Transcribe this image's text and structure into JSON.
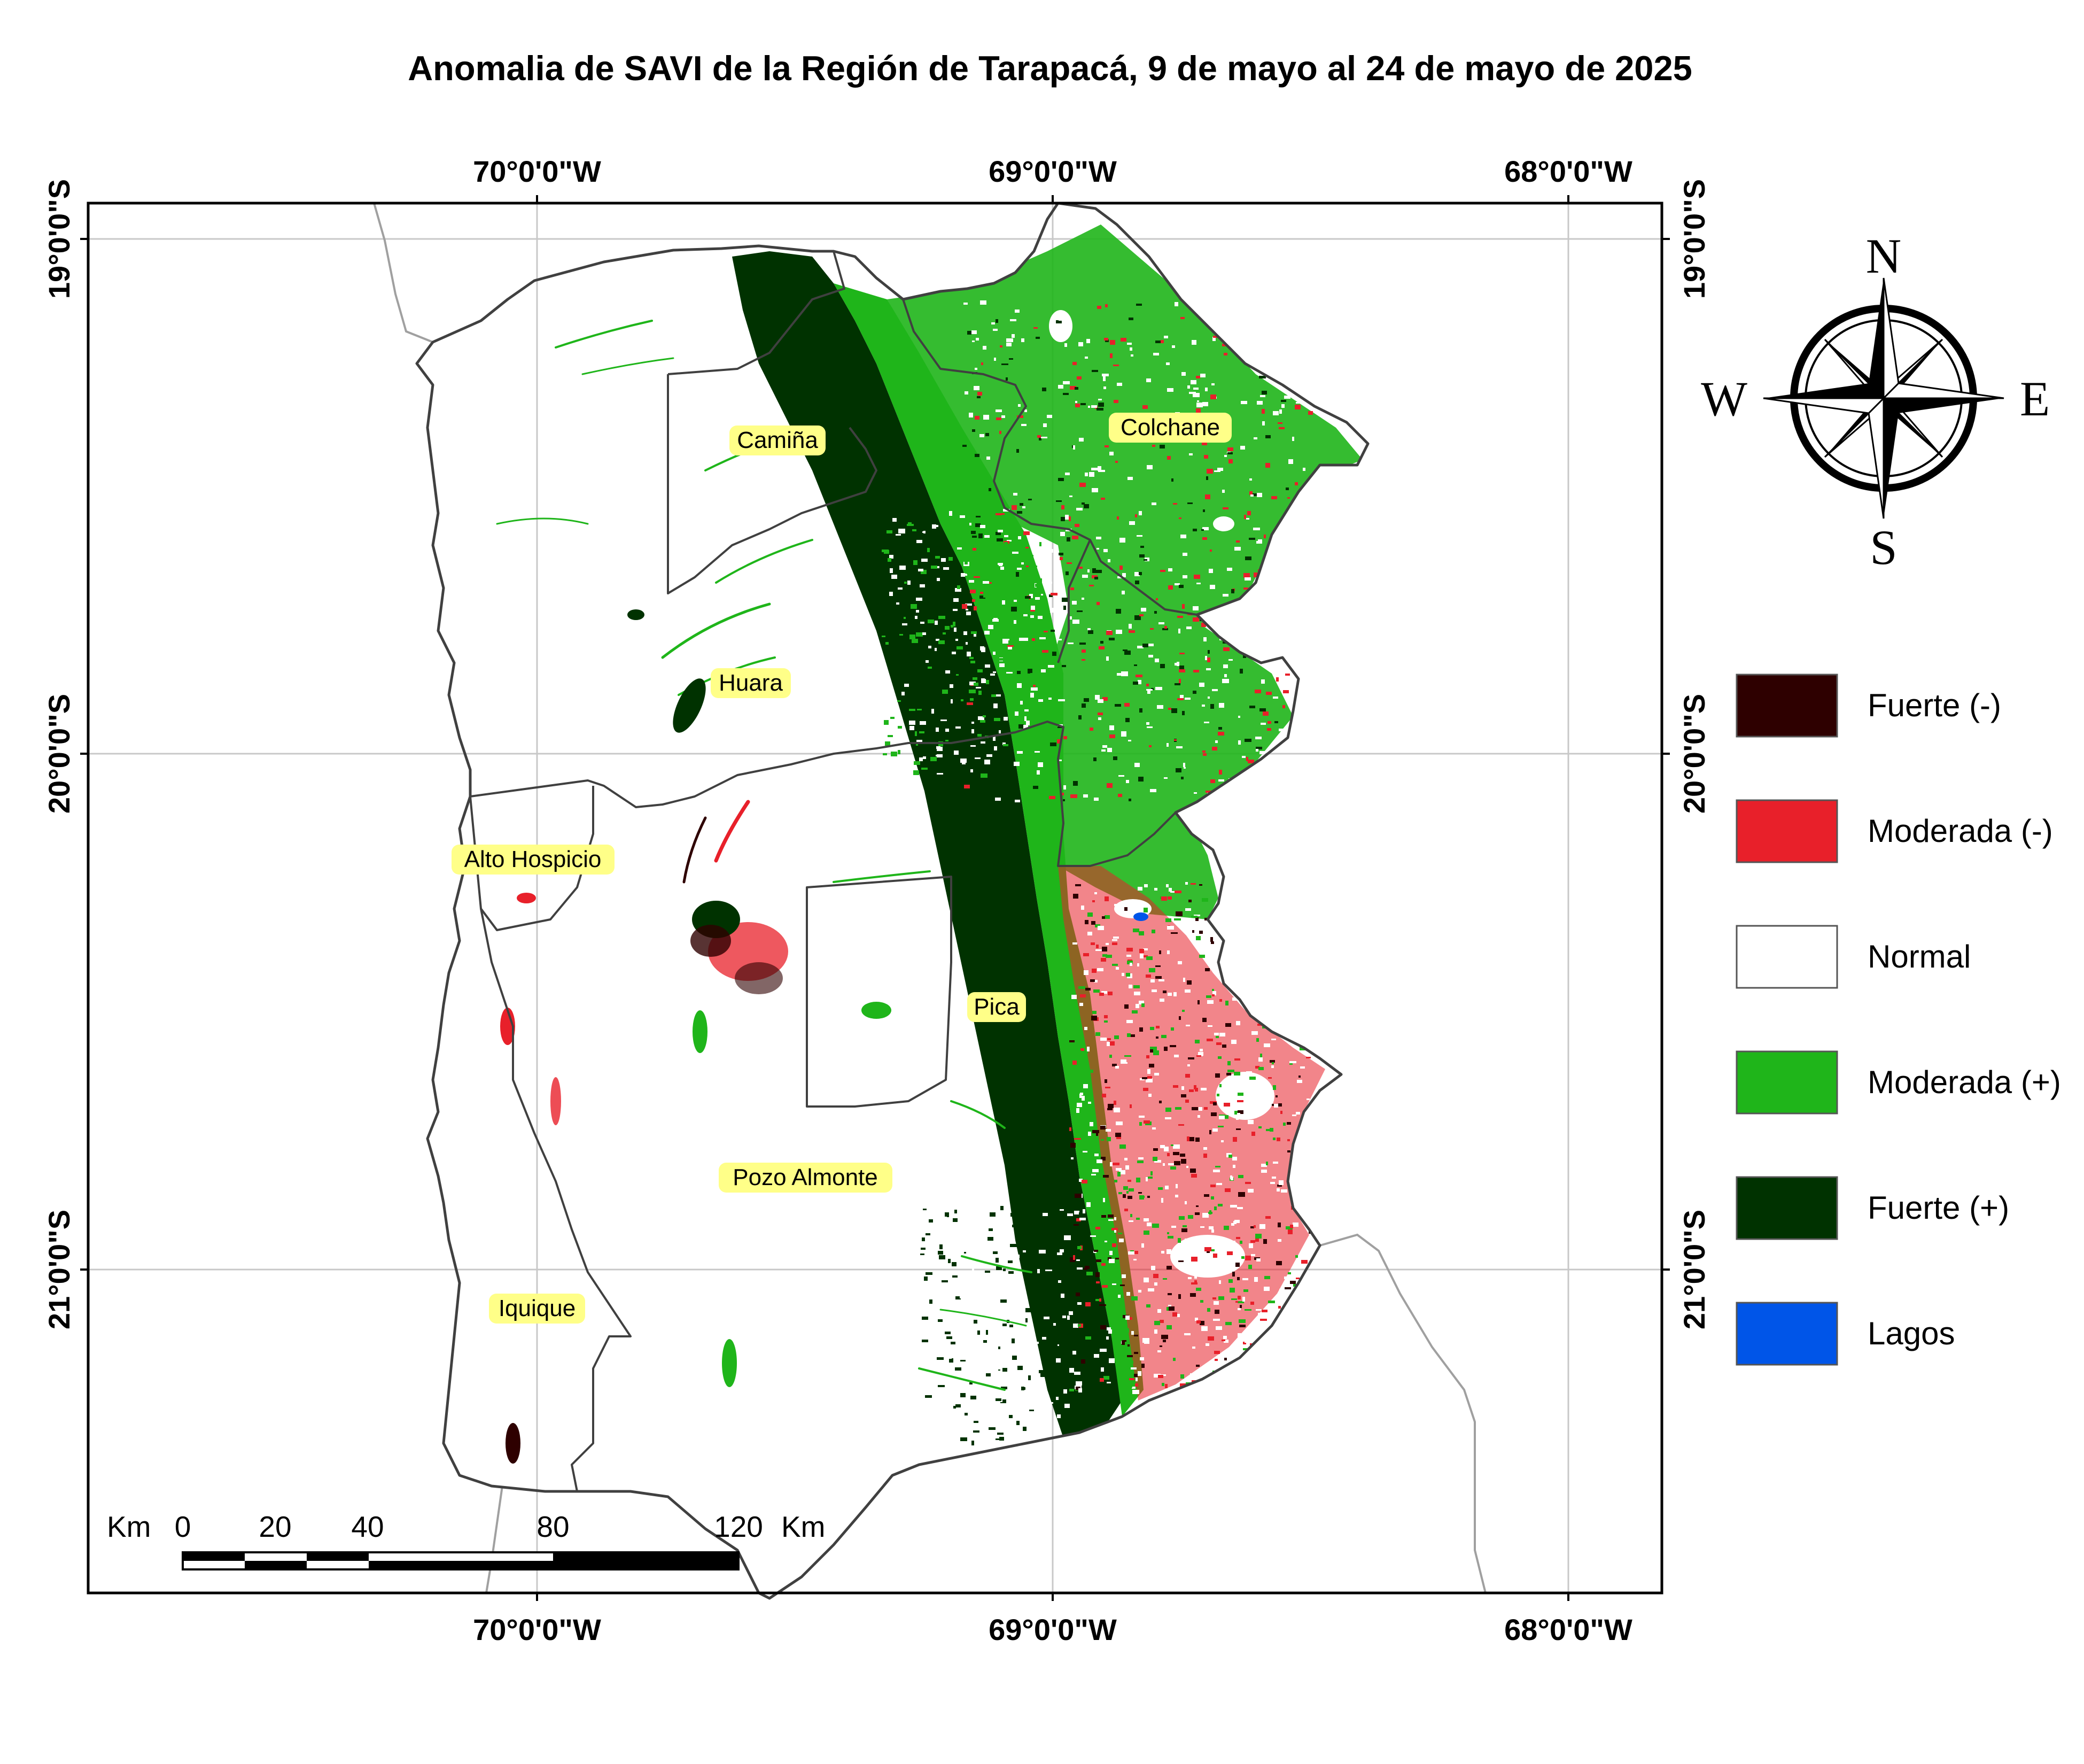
{
  "title": "Anomalia de SAVI de la Región de Tarapacá, 9 de mayo al 24 de mayo de 2025",
  "axes": {
    "longitude_labels": [
      "70°0'0\"W",
      "69°0'0\"W",
      "68°0'0\"W"
    ],
    "latitude_labels": [
      "19°0'0\"S",
      "20°0'0\"S",
      "21°0'0\"S"
    ]
  },
  "places": [
    {
      "name": "Camiña"
    },
    {
      "name": "Colchane"
    },
    {
      "name": "Huara"
    },
    {
      "name": "Alto Hospicio"
    },
    {
      "name": "Pica"
    },
    {
      "name": "Pozo Almonte"
    },
    {
      "name": "Iquique"
    }
  ],
  "compass": {
    "n": "N",
    "s": "S",
    "e": "E",
    "w": "W"
  },
  "scale_bar": {
    "unit_left": "Km",
    "unit_right": "Km",
    "ticks": [
      "0",
      "20",
      "40",
      "80",
      "120"
    ]
  },
  "legend": [
    {
      "label": "Fuerte (-)",
      "color": "#2e0000"
    },
    {
      "label": "Moderada (-)",
      "color": "#e8202a"
    },
    {
      "label": "Normal",
      "color": "#ffffff"
    },
    {
      "label": "Moderada (+)",
      "color": "#1fb51a"
    },
    {
      "label": "Fuerte (+)",
      "color": "#003200"
    },
    {
      "label": "Lagos",
      "color": "#0055e8"
    }
  ],
  "colors": {
    "frame": "#000000",
    "graticule": "#c8c8c8",
    "boundary": "#404040",
    "neighbor_boundary": "#a0a0a0",
    "label_highlight": "#ffff88"
  }
}
